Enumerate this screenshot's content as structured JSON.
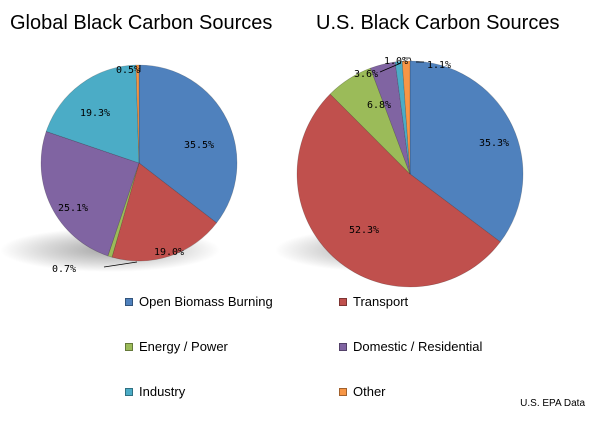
{
  "source_note": "U.S. EPA Data",
  "legend": [
    {
      "label": "Open Biomass Burning",
      "color": "#4F81BD"
    },
    {
      "label": "Transport",
      "color": "#C0504D"
    },
    {
      "label": "Energy / Power",
      "color": "#9BBB59"
    },
    {
      "label": "Domestic / Residential",
      "color": "#8064A2"
    },
    {
      "label": "Industry",
      "color": "#4BACC6"
    },
    {
      "label": "Other",
      "color": "#F79646"
    }
  ],
  "chart_data": [
    {
      "type": "pie",
      "title": "Global Black Carbon Sources",
      "categories": [
        "Open Biomass Burning",
        "Transport",
        "Energy / Power",
        "Domestic / Residential",
        "Industry",
        "Other"
      ],
      "values": [
        35.5,
        19.0,
        0.7,
        25.1,
        19.3,
        0.5
      ],
      "labels": [
        "35.5%",
        "19.0%",
        "0.7%",
        "25.1%",
        "19.3%",
        "0.5%"
      ],
      "colors": [
        "#4F81BD",
        "#C0504D",
        "#9BBB59",
        "#8064A2",
        "#4BACC6",
        "#F79646"
      ]
    },
    {
      "type": "pie",
      "title": "U.S. Black Carbon Sources",
      "categories": [
        "Open Biomass Burning",
        "Transport",
        "Energy / Power",
        "Domestic / Residential",
        "Industry",
        "Other"
      ],
      "values": [
        35.3,
        52.3,
        6.8,
        3.6,
        1.0,
        1.1
      ],
      "labels": [
        "35.3%",
        "52.3%",
        "6.8%",
        "3.6%",
        "1.0%",
        "1.1%"
      ],
      "colors": [
        "#4F81BD",
        "#C0504D",
        "#9BBB59",
        "#8064A2",
        "#4BACC6",
        "#F79646"
      ]
    }
  ]
}
